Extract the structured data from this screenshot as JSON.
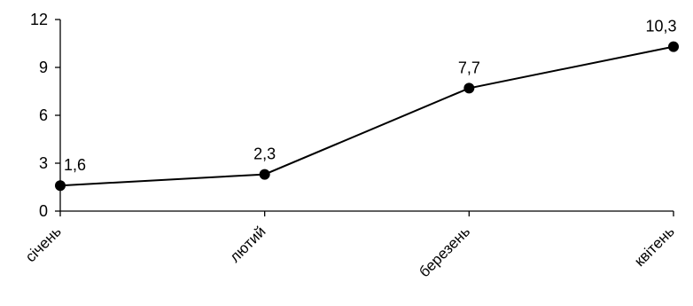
{
  "chart_data": {
    "type": "line",
    "title": "",
    "xlabel": "",
    "ylabel": "",
    "categories": [
      "січень",
      "лютий",
      "березень",
      "квітень"
    ],
    "series": [
      {
        "values": [
          1.6,
          2.3,
          7.7,
          10.3
        ],
        "data_labels": [
          "1,6",
          "2,3",
          "7,7",
          "10,3"
        ],
        "color": "#000000",
        "marker": "circle"
      }
    ],
    "ylim": [
      0,
      12
    ],
    "yticks": [
      0,
      3,
      6,
      9,
      12
    ],
    "grid": false,
    "legend": "none"
  }
}
